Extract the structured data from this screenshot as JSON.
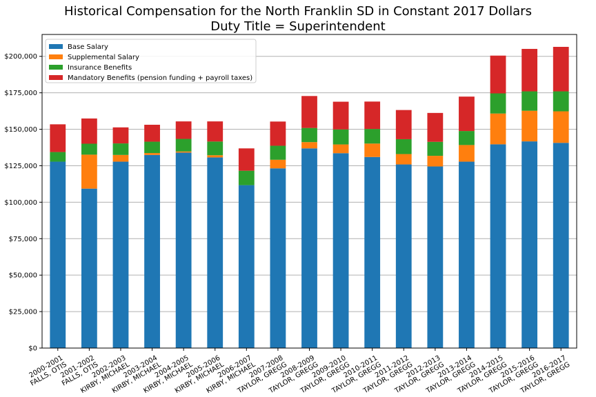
{
  "chart_data": {
    "type": "bar",
    "stacked": true,
    "title": [
      "Historical Compensation for the North Franklin SD in Constant 2017 Dollars",
      "Duty Title = Superintendent"
    ],
    "xlabel": "",
    "ylabel": "",
    "ylim": [
      0,
      215000
    ],
    "yticks": [
      0,
      25000,
      50000,
      75000,
      100000,
      125000,
      150000,
      175000,
      200000
    ],
    "ytick_labels": [
      "$0",
      "$25,000",
      "$50,000",
      "$75,000",
      "$100,000",
      "$125,000",
      "$150,000",
      "$175,000",
      "$200,000"
    ],
    "grid": "horizontal",
    "legend_position": "top-left",
    "categories": [
      [
        "2000-2001",
        "FALLS, OTIS"
      ],
      [
        "2001-2002",
        "FALLS, OTIS"
      ],
      [
        "2002-2003",
        "KIRBY, MICHAEL"
      ],
      [
        "2003-2004",
        "KIRBY, MICHAEL"
      ],
      [
        "2004-2005",
        "KIRBY, MICHAEL"
      ],
      [
        "2005-2006",
        "KIRBY, MICHAEL"
      ],
      [
        "2006-2007",
        "KIRBY, MICHAEL"
      ],
      [
        "2007-2008",
        "TAYLOR, GREGG"
      ],
      [
        "2008-2009",
        "TAYLOR, GREGG"
      ],
      [
        "2009-2010",
        "TAYLOR, GREGG"
      ],
      [
        "2010-2011",
        "TAYLOR, GREGG"
      ],
      [
        "2011-2012",
        "TAYLOR, GREGG"
      ],
      [
        "2012-2013",
        "TAYLOR, GREGG"
      ],
      [
        "2013-2014",
        "TAYLOR, GREGG"
      ],
      [
        "2014-2015",
        "TAYLOR, GREGG"
      ],
      [
        "2015-2016",
        "TAYLOR, GREGG"
      ],
      [
        "2016-2017",
        "TAYLOR, GREGG"
      ]
    ],
    "series": [
      {
        "name": "Base Salary",
        "color": "#1f77b4",
        "values": [
          127800,
          109300,
          127800,
          132400,
          134000,
          130700,
          111700,
          123200,
          136900,
          133600,
          131000,
          125900,
          124500,
          127800,
          139700,
          141700,
          140700
        ]
      },
      {
        "name": "Supplemental Salary",
        "color": "#ff7f0e",
        "values": [
          0,
          23300,
          4600,
          1300,
          800,
          1500,
          0,
          5900,
          4300,
          6000,
          9200,
          7100,
          7300,
          11400,
          21100,
          21000,
          21600
        ]
      },
      {
        "name": "Insurance Benefits",
        "color": "#2ca02c",
        "values": [
          6600,
          7500,
          7900,
          7800,
          8600,
          9400,
          9900,
          9600,
          9700,
          10300,
          10000,
          10200,
          9600,
          9600,
          13800,
          13300,
          13700
        ]
      },
      {
        "name": "Mandatory Benefits (pension funding + payroll taxes)",
        "color": "#d62728",
        "values": [
          19000,
          17300,
          11000,
          11600,
          12000,
          13800,
          15300,
          16600,
          21900,
          19000,
          18800,
          20000,
          19800,
          23600,
          25900,
          29100,
          30500
        ]
      }
    ]
  }
}
